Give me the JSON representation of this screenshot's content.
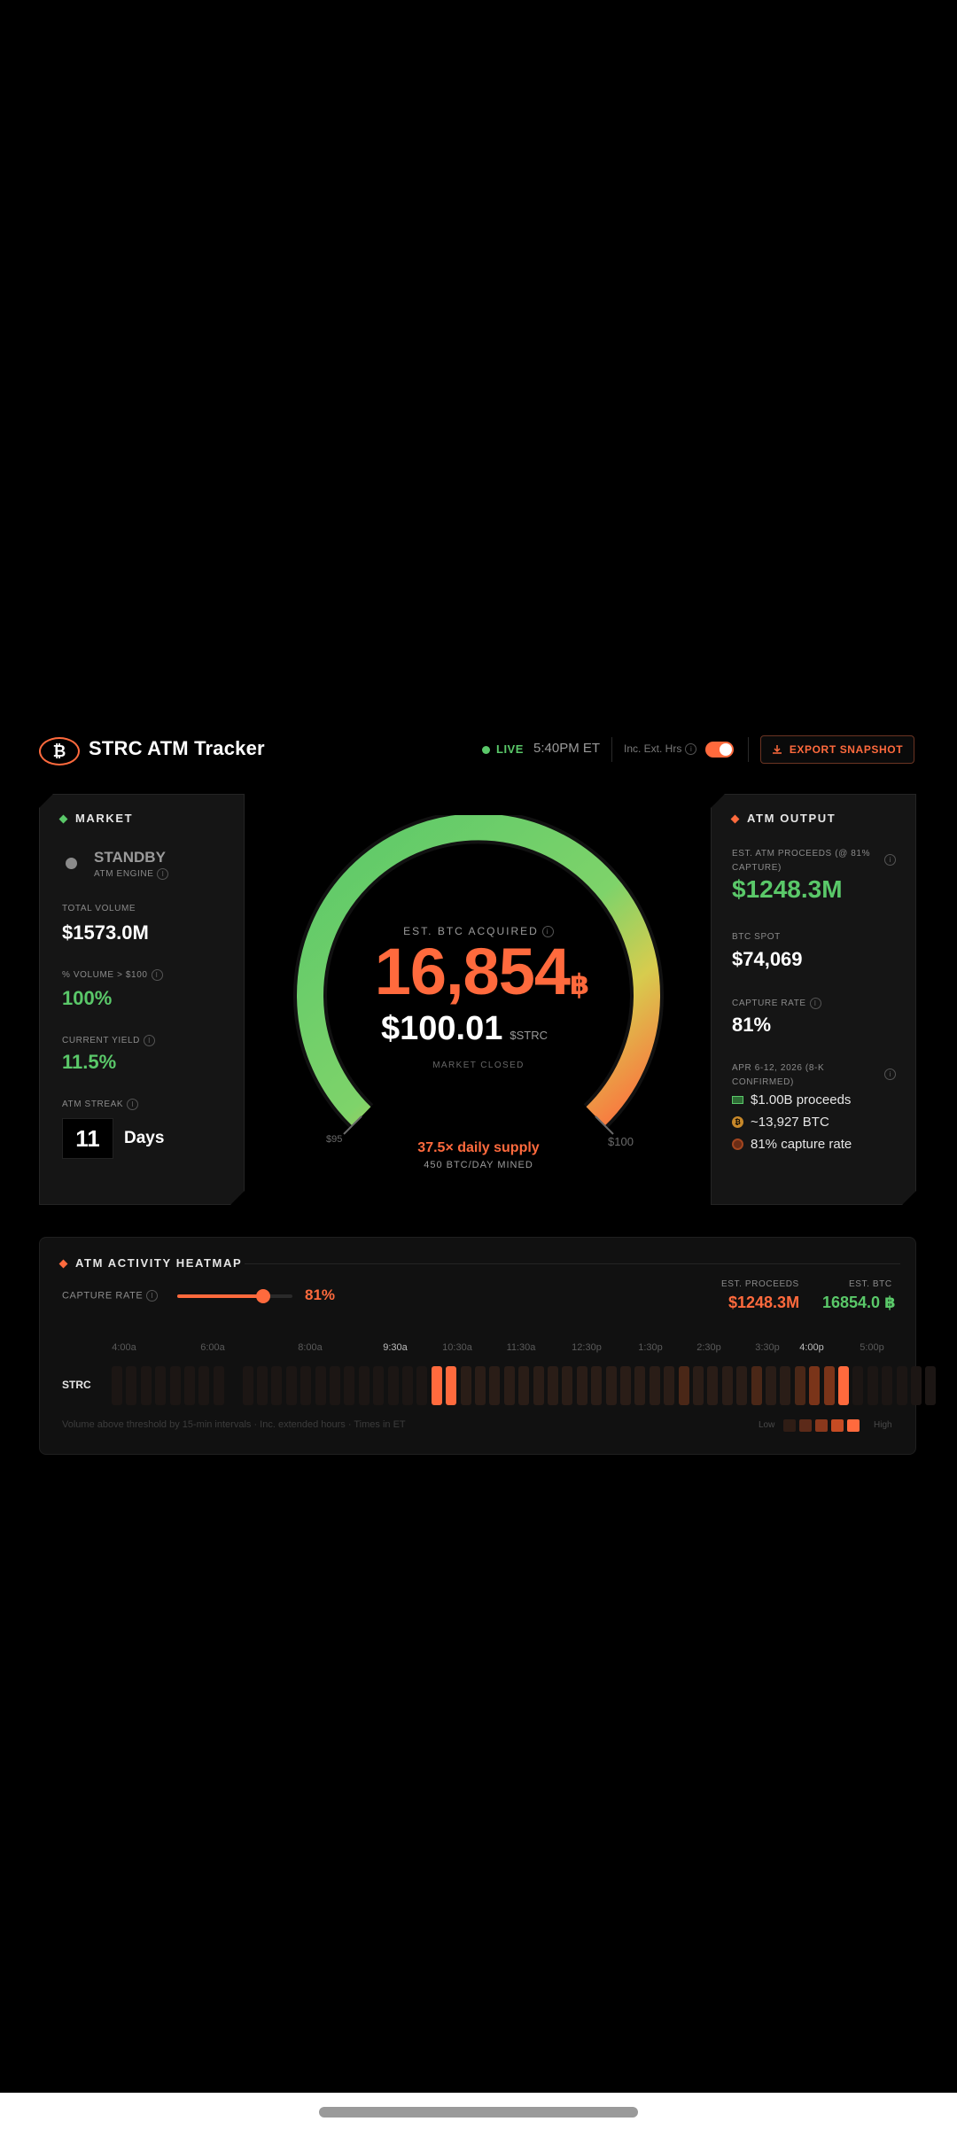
{
  "header": {
    "title": "STRC ATM Tracker",
    "live_label": "LIVE",
    "time": "5:40PM ET",
    "ext_hours_label": "Inc. Ext. Hrs",
    "export_label": "EXPORT SNAPSHOT"
  },
  "market": {
    "title": "MARKET",
    "status": "STANDBY",
    "engine_label": "ATM ENGINE",
    "total_volume_label": "TOTAL VOLUME",
    "total_volume": "$1573.0M",
    "pct_volume_label": "% VOLUME > $100",
    "pct_volume": "100%",
    "yield_label": "CURRENT YIELD",
    "yield": "11.5%",
    "streak_label": "ATM STREAK",
    "streak_value": "11",
    "streak_unit": "Days"
  },
  "gauge": {
    "label": "EST. BTC ACQUIRED",
    "btc_value": "16,854",
    "btc_symbol": "฿",
    "price": "$100.01",
    "price_unit": "$STRC",
    "market_status": "MARKET CLOSED",
    "min_label": "$95",
    "max_label": "$100",
    "supply": "37.5× daily supply",
    "mined": "450 BTC/DAY MINED"
  },
  "atm_output": {
    "title": "ATM OUTPUT",
    "proceeds_label": "EST. ATM PROCEEDS (@ 81% CAPTURE)",
    "proceeds": "$1248.3M",
    "btc_spot_label": "BTC SPOT",
    "btc_spot": "$74,069",
    "capture_label": "CAPTURE RATE",
    "capture": "81%",
    "period_label": "APR 6-12, 2026 (8-K CONFIRMED)",
    "items": [
      {
        "text": "$1.00B proceeds",
        "icon": "cash-icon"
      },
      {
        "text": "~13,927 BTC",
        "icon": "bitcoin-icon"
      },
      {
        "text": "81% capture rate",
        "icon": "target-icon"
      }
    ]
  },
  "heatmap": {
    "title": "ATM ACTIVITY HEATMAP",
    "capture_label": "CAPTURE RATE",
    "capture_value": "81%",
    "capture_level": 0.81,
    "est_proceeds_label": "EST. PROCEEDS",
    "est_proceeds": "$1248.3M",
    "est_btc_label": "EST. BTC",
    "est_btc": "16854.0 ฿",
    "row_label": "STRC",
    "ticks": [
      "4:00a",
      "6:00a",
      "8:00a",
      "9:30a",
      "10:30a",
      "11:30a",
      "12:30p",
      "1:30p",
      "2:30p",
      "3:30p",
      "4:00p",
      "5:00p"
    ],
    "footnote": "Volume above threshold by 15-min intervals · Inc. extended hours · Times in ET",
    "legend_low": "Low",
    "legend_high": "High",
    "levels": [
      1,
      1,
      1,
      1,
      1,
      1,
      1,
      1,
      0,
      1,
      1,
      1,
      1,
      1,
      1,
      1,
      1,
      1,
      1,
      1,
      1,
      1,
      5,
      5,
      2,
      2,
      2,
      2,
      2,
      2,
      2,
      2,
      2,
      2,
      2,
      2,
      2,
      2,
      2,
      3,
      2,
      2,
      2,
      2,
      3,
      2,
      2,
      3,
      4,
      4,
      5,
      1,
      1,
      1,
      1,
      1,
      1
    ]
  },
  "colors": {
    "accent": "#ff6a3d",
    "green": "#5ac869",
    "background": "#000000"
  }
}
